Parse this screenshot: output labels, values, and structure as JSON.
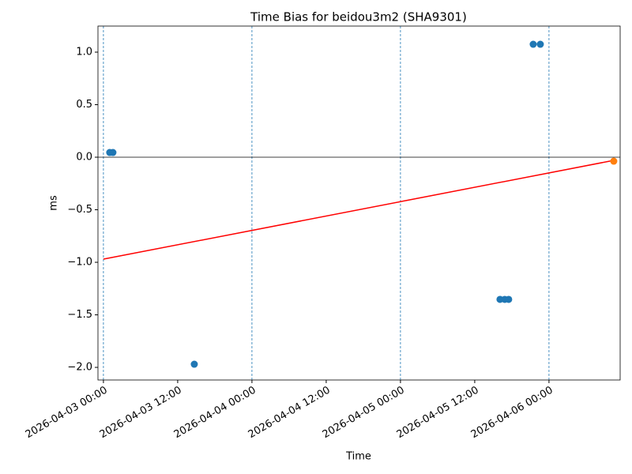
{
  "chart_data": {
    "type": "scatter",
    "title": "Time Bias for beidou3m2 (SHA9301)",
    "xlabel": "Time",
    "ylabel": "ms",
    "xlim": [
      "2026-04-02 23:07",
      "2026-04-06 11:30"
    ],
    "ylim": [
      -2.12,
      1.248
    ],
    "xticks": [
      "2026-04-03 00:00",
      "2026-04-03 12:00",
      "2026-04-04 00:00",
      "2026-04-04 12:00",
      "2026-04-05 00:00",
      "2026-04-05 12:00",
      "2026-04-06 00:00"
    ],
    "yticks": [
      {
        "value": -2.0,
        "label": "−2.0"
      },
      {
        "value": -1.5,
        "label": "−1.5"
      },
      {
        "value": -1.0,
        "label": "−1.0"
      },
      {
        "value": -0.5,
        "label": "−0.5"
      },
      {
        "value": 0.0,
        "label": "0.0"
      },
      {
        "value": 0.5,
        "label": "0.5"
      },
      {
        "value": 1.0,
        "label": "1.0"
      }
    ],
    "vlines": [
      "2026-04-03 00:00",
      "2026-04-04 00:00",
      "2026-04-05 00:00",
      "2026-04-06 00:00"
    ],
    "hline": 0,
    "series": [
      {
        "type": "line",
        "color": "#ff0000",
        "x": [
          "2026-04-03 00:00",
          "2026-04-06 10:28"
        ],
        "values": [
          -0.97,
          -0.03
        ]
      },
      {
        "type": "scatter",
        "color": "#1f77b4",
        "x": [
          "2026-04-03 01:01",
          "2026-04-03 01:32",
          "2026-04-03 14:41",
          "2026-04-05 16:05",
          "2026-04-05 16:51",
          "2026-04-05 17:29",
          "2026-04-05 21:27",
          "2026-04-05 22:36"
        ],
        "values": [
          0.045,
          0.045,
          -1.97,
          -1.353,
          -1.353,
          -1.353,
          1.075,
          1.075
        ]
      },
      {
        "type": "scatter",
        "color": "#ff7f0e",
        "x": [
          "2026-04-06 10:28"
        ],
        "values": [
          -0.038
        ]
      }
    ]
  }
}
